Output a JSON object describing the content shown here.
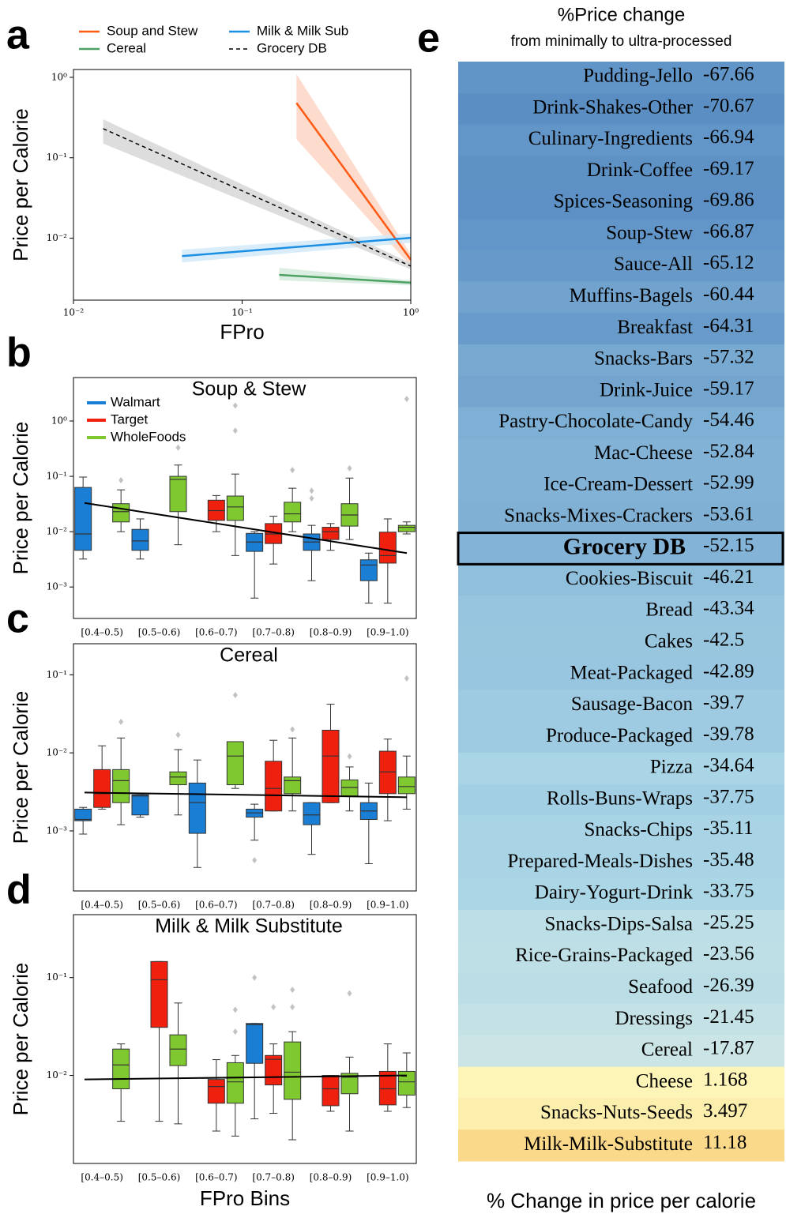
{
  "chart_data": [
    {
      "type": "line",
      "label": "a",
      "xlabel": "FPro",
      "ylabel": "Price per Calorie",
      "xscale": "log",
      "yscale": "log",
      "xlim": [
        0.01,
        1
      ],
      "ylim": [
        0.0017,
        1.25
      ],
      "xticks": [
        {
          "value": 0.01,
          "label": "10⁻²"
        },
        {
          "value": 0.1,
          "label": "10⁻¹"
        },
        {
          "value": 1,
          "label": "10⁰"
        }
      ],
      "yticks": [
        {
          "value": 0.01,
          "label": "10⁻²"
        },
        {
          "value": 0.1,
          "label": "10⁻¹"
        },
        {
          "value": 1,
          "label": "10⁰"
        }
      ],
      "legend": "above",
      "series": [
        {
          "name": "Soup and Stew",
          "color": "#ff5a14",
          "band_color": "#fcd2c0",
          "x": [
            0.21,
            1
          ],
          "values": [
            0.48,
            0.0054
          ],
          "lower": [
            0.17,
            0.0045
          ],
          "upper": [
            1.1,
            0.0063
          ]
        },
        {
          "name": "Cereal",
          "color": "#4ca163",
          "band_color": "#d3eadb",
          "x": [
            0.166,
            1
          ],
          "values": [
            0.0035,
            0.0028
          ],
          "lower": [
            0.003,
            0.0026
          ],
          "upper": [
            0.0043,
            0.003
          ]
        },
        {
          "name": "Milk & Milk Sub",
          "color": "#1a8fe3",
          "band_color": "#cfe7f8",
          "x": [
            0.044,
            1
          ],
          "values": [
            0.006,
            0.0101
          ],
          "lower": [
            0.005,
            0.0088
          ],
          "upper": [
            0.0072,
            0.0115
          ]
        },
        {
          "name": "Grocery DB",
          "color": "#000000",
          "band_color": "#d4d4d4",
          "dash": true,
          "x": [
            0.015,
            1
          ],
          "values": [
            0.23,
            0.0045
          ],
          "lower": [
            0.15,
            0.0041
          ],
          "upper": [
            0.3,
            0.0049
          ]
        }
      ]
    },
    {
      "type": "box",
      "label": "b",
      "title": "Soup & Stew",
      "ylabel": "Price per Calorie",
      "yscale": "log",
      "ylim": [
        0.00027,
        6.1
      ],
      "yticks": [
        {
          "value": 0.001,
          "label": "10⁻³"
        },
        {
          "value": 0.01,
          "label": "10⁻²"
        },
        {
          "value": 0.1,
          "label": "10⁻¹"
        },
        {
          "value": 1,
          "label": "10⁰"
        }
      ],
      "categories": [
        "[0.4–0.5)",
        "[0.5–0.6)",
        "[0.6–0.7)",
        "[0.7–0.8)",
        "[0.8–0.9)",
        "[0.9–1.0)"
      ],
      "legend": "upper left",
      "fit": {
        "color": "#000000",
        "values": [
          0.033,
          0.0041
        ]
      },
      "series": [
        {
          "name": "Walmart",
          "color": "#1a7fd4",
          "values": [
            {
              "min": 0.0032,
              "q1": 0.0046,
              "median": 0.0091,
              "q3": 0.063,
              "max": 0.097,
              "outliers": []
            },
            {
              "min": 0.0032,
              "q1": 0.0046,
              "median": 0.0068,
              "q3": 0.011,
              "max": 0.017,
              "outliers": []
            },
            null,
            {
              "min": 0.00063,
              "q1": 0.0044,
              "median": 0.0065,
              "q3": 0.0093,
              "max": 0.01,
              "outliers": []
            },
            {
              "min": 0.0013,
              "q1": 0.0046,
              "median": 0.0065,
              "q3": 0.0091,
              "max": 0.013,
              "outliers": [
                0.04,
                0.055
              ]
            },
            {
              "min": 0.00051,
              "q1": 0.0013,
              "median": 0.0025,
              "q3": 0.0031,
              "max": 0.0041,
              "outliers": []
            }
          ]
        },
        {
          "name": "Target",
          "color": "#f0200f",
          "values": [
            null,
            null,
            {
              "min": 0.01,
              "q1": 0.016,
              "median": 0.024,
              "q3": 0.037,
              "max": 0.045,
              "outliers": []
            },
            {
              "min": 0.0026,
              "q1": 0.0061,
              "median": 0.0091,
              "q3": 0.014,
              "max": 0.019,
              "outliers": []
            },
            {
              "min": 0.0046,
              "q1": 0.0072,
              "median": 0.01,
              "q3": 0.012,
              "max": 0.014,
              "outliers": []
            },
            {
              "min": 0.00051,
              "q1": 0.0027,
              "median": 0.0037,
              "q3": 0.0098,
              "max": 0.017,
              "outliers": []
            }
          ]
        },
        {
          "name": "WholeFoods",
          "color": "#80c830",
          "values": [
            {
              "min": 0.01,
              "q1": 0.015,
              "median": 0.023,
              "q3": 0.032,
              "max": 0.057,
              "outliers": [
                0.085
              ]
            },
            {
              "min": 0.0058,
              "q1": 0.023,
              "median": 0.088,
              "q3": 0.1,
              "max": 0.16,
              "outliers": [
                0.33
              ]
            },
            {
              "min": 0.0037,
              "q1": 0.016,
              "median": 0.028,
              "q3": 0.044,
              "max": 0.11,
              "outliers": [
                1.9,
                0.67
              ]
            },
            {
              "min": 0.01,
              "q1": 0.015,
              "median": 0.021,
              "q3": 0.034,
              "max": 0.061,
              "outliers": [
                0.13
              ]
            },
            {
              "min": 0.0072,
              "q1": 0.0126,
              "median": 0.02,
              "q3": 0.032,
              "max": 0.093,
              "outliers": [
                0.14
              ]
            },
            {
              "min": 0.0091,
              "q1": 0.01,
              "median": 0.012,
              "q3": 0.013,
              "max": 0.015,
              "outliers": [
                2.5
              ]
            }
          ]
        }
      ]
    },
    {
      "type": "box",
      "label": "c",
      "title": "Cereal",
      "ylabel": "Price per Calorie",
      "yscale": "log",
      "ylim": [
        0.00017,
        0.25
      ],
      "yticks": [
        {
          "value": 0.001,
          "label": "10⁻³"
        },
        {
          "value": 0.01,
          "label": "10⁻²"
        },
        {
          "value": 0.1,
          "label": "10⁻¹"
        }
      ],
      "categories": [
        "[0.4–0.5)",
        "[0.5–0.6)",
        "[0.6–0.7)",
        "[0.7–0.8)",
        "[0.8–0.9)",
        "[0.9–1.0)"
      ],
      "fit": {
        "color": "#000000",
        "values": [
          0.0031,
          0.0027
        ]
      },
      "series": [
        {
          "color": "#1a7fd4",
          "values": [
            {
              "min": 0.00091,
              "q1": 0.00135,
              "median": 0.0014,
              "q3": 0.0019,
              "max": 0.002,
              "outliers": []
            },
            {
              "min": 0.0015,
              "q1": 0.0016,
              "median": 0.0028,
              "q3": 0.0029,
              "max": 0.0029,
              "outliers": []
            },
            {
              "min": 0.00034,
              "q1": 0.00093,
              "median": 0.0023,
              "q3": 0.0041,
              "max": 0.0081,
              "outliers": []
            },
            {
              "min": 0.00076,
              "q1": 0.0015,
              "median": 0.0017,
              "q3": 0.0019,
              "max": 0.0022,
              "outliers": [
                0.00042
              ]
            },
            {
              "min": 0.0005,
              "q1": 0.0012,
              "median": 0.0016,
              "q3": 0.0023,
              "max": 0.0023,
              "outliers": []
            },
            {
              "min": 0.00038,
              "q1": 0.0014,
              "median": 0.0018,
              "q3": 0.0023,
              "max": 0.0041,
              "outliers": []
            }
          ]
        },
        {
          "color": "#f0200f",
          "values": [
            {
              "min": 0.0019,
              "q1": 0.002,
              "median": 0.003,
              "q3": 0.0061,
              "max": 0.0123,
              "outliers": []
            },
            null,
            null,
            {
              "min": 0.0018,
              "q1": 0.0018,
              "median": 0.0035,
              "q3": 0.0078,
              "max": 0.0145,
              "outliers": []
            },
            {
              "min": 0.0023,
              "q1": 0.0023,
              "median": 0.0091,
              "q3": 0.0195,
              "max": 0.042,
              "outliers": []
            },
            {
              "min": 0.00135,
              "q1": 0.003,
              "median": 0.0057,
              "q3": 0.0105,
              "max": 0.015,
              "outliers": []
            }
          ]
        },
        {
          "color": "#80c830",
          "values": [
            {
              "min": 0.0012,
              "q1": 0.0023,
              "median": 0.0044,
              "q3": 0.0061,
              "max": 0.0155,
              "outliers": [
                0.025
              ]
            },
            {
              "min": 0.0016,
              "q1": 0.0039,
              "median": 0.0049,
              "q3": 0.0057,
              "max": 0.011,
              "outliers": [
                0.017
              ]
            },
            {
              "min": 0.0035,
              "q1": 0.0039,
              "median": 0.0091,
              "q3": 0.0139,
              "max": 0.0139,
              "outliers": [
                0.055
              ]
            },
            {
              "min": 0.0018,
              "q1": 0.003,
              "median": 0.0044,
              "q3": 0.0049,
              "max": 0.0155,
              "outliers": [
                0.02
              ]
            },
            {
              "min": 0.0018,
              "q1": 0.0028,
              "median": 0.0036,
              "q3": 0.0045,
              "max": 0.0066,
              "outliers": [
                0.009
              ]
            },
            {
              "min": 0.0019,
              "q1": 0.003,
              "median": 0.0037,
              "q3": 0.0049,
              "max": 0.0091,
              "outliers": [
                0.09
              ]
            }
          ]
        }
      ]
    },
    {
      "type": "box",
      "label": "d",
      "title": "Milk & Milk Substitute",
      "ylabel": "Price per Calorie",
      "xlabel": "FPro Bins",
      "yscale": "log",
      "ylim": [
        0.00126,
        0.44
      ],
      "yticks": [
        {
          "value": 0.01,
          "label": "10⁻²"
        },
        {
          "value": 0.1,
          "label": "10⁻¹"
        }
      ],
      "categories": [
        "[0.4–0.5)",
        "[0.5–0.6)",
        "[0.6–0.7)",
        "[0.7–0.8)",
        "[0.8–0.9)",
        "[0.9–1.0)"
      ],
      "fit": {
        "color": "#000000",
        "values": [
          0.0091,
          0.01
        ]
      },
      "series": [
        {
          "color": "#1a7fd4",
          "values": [
            null,
            null,
            null,
            {
              "min": 0.0036,
              "q1": 0.0133,
              "median": 0.033,
              "q3": 0.034,
              "max": 0.034,
              "outliers": [
                0.1
              ]
            },
            null,
            null
          ]
        },
        {
          "color": "#f0200f",
          "values": [
            null,
            {
              "min": 0.0034,
              "q1": 0.031,
              "median": 0.095,
              "q3": 0.146,
              "max": 0.146,
              "outliers": []
            },
            {
              "min": 0.0027,
              "q1": 0.0052,
              "median": 0.0077,
              "q3": 0.0091,
              "max": 0.0145,
              "outliers": []
            },
            {
              "min": 0.0041,
              "q1": 0.008,
              "median": 0.0146,
              "q3": 0.016,
              "max": 0.021,
              "outliers": [
                0.05
              ]
            },
            {
              "min": 0.0043,
              "q1": 0.0049,
              "median": 0.0073,
              "q3": 0.01,
              "max": 0.01,
              "outliers": []
            },
            {
              "min": 0.0043,
              "q1": 0.005,
              "median": 0.0073,
              "q3": 0.011,
              "max": 0.021,
              "outliers": []
            }
          ]
        },
        {
          "color": "#80c830",
          "values": [
            {
              "min": 0.0034,
              "q1": 0.0073,
              "median": 0.0128,
              "q3": 0.0186,
              "max": 0.021,
              "outliers": []
            },
            {
              "min": 0.0032,
              "q1": 0.0126,
              "median": 0.0186,
              "q3": 0.026,
              "max": 0.055,
              "outliers": []
            },
            {
              "min": 0.0024,
              "q1": 0.0052,
              "median": 0.0086,
              "q3": 0.0135,
              "max": 0.016,
              "outliers": [
                0.047,
                0.028
              ]
            },
            {
              "min": 0.0022,
              "q1": 0.0057,
              "median": 0.0108,
              "q3": 0.022,
              "max": 0.028,
              "outliers": [
                0.075,
                0.05
              ]
            },
            {
              "min": 0.0027,
              "q1": 0.0065,
              "median": 0.0096,
              "q3": 0.0105,
              "max": 0.0154,
              "outliers": [
                0.069
              ]
            },
            {
              "min": 0.0047,
              "q1": 0.0063,
              "median": 0.0086,
              "q3": 0.011,
              "max": 0.017,
              "outliers": []
            }
          ]
        }
      ]
    },
    {
      "type": "heatmap",
      "label": "e",
      "title": "%Price change",
      "subtitle": "from minimally to ultra-processed",
      "xlabel": "% Change in price per calorie",
      "highlight_row": 15,
      "colormap": {
        "negative": [
          "#eef6e6",
          "#a8d4e6",
          "#5b8fc4"
        ],
        "positive": [
          "#fdf8bd",
          "#fbd98a"
        ]
      },
      "categories": [
        "Pudding-Jello",
        "Drink-Shakes-Other",
        "Culinary-Ingredients",
        "Drink-Coffee",
        "Spices-Seasoning",
        "Soup-Stew",
        "Sauce-All",
        "Muffins-Bagels",
        "Breakfast",
        "Snacks-Bars",
        "Drink-Juice",
        "Pastry-Chocolate-Candy",
        "Mac-Cheese",
        "Ice-Cream-Dessert",
        "Snacks-Mixes-Crackers",
        "Grocery DB",
        "Cookies-Biscuit",
        "Bread",
        "Cakes",
        "Meat-Packaged",
        "Sausage-Bacon",
        "Produce-Packaged",
        "Pizza",
        "Rolls-Buns-Wraps",
        "Snacks-Chips",
        "Prepared-Meals-Dishes",
        "Dairy-Yogurt-Drink",
        "Snacks-Dips-Salsa",
        "Rice-Grains-Packaged",
        "Seafood",
        "Dressings",
        "Cereal",
        "Cheese",
        "Snacks-Nuts-Seeds",
        "Milk-Milk-Substitute"
      ],
      "values": [
        -67.66,
        -70.67,
        -66.94,
        -69.17,
        -69.86,
        -66.87,
        -65.12,
        -60.44,
        -64.31,
        -57.32,
        -59.17,
        -54.46,
        -52.84,
        -52.99,
        -53.61,
        -52.15,
        -46.21,
        -43.34,
        -42.5,
        -42.89,
        -39.7,
        -39.78,
        -34.64,
        -37.75,
        -35.11,
        -35.48,
        -33.75,
        -25.25,
        -23.56,
        -26.39,
        -21.45,
        -17.87,
        1.168,
        3.497,
        11.18
      ]
    }
  ]
}
